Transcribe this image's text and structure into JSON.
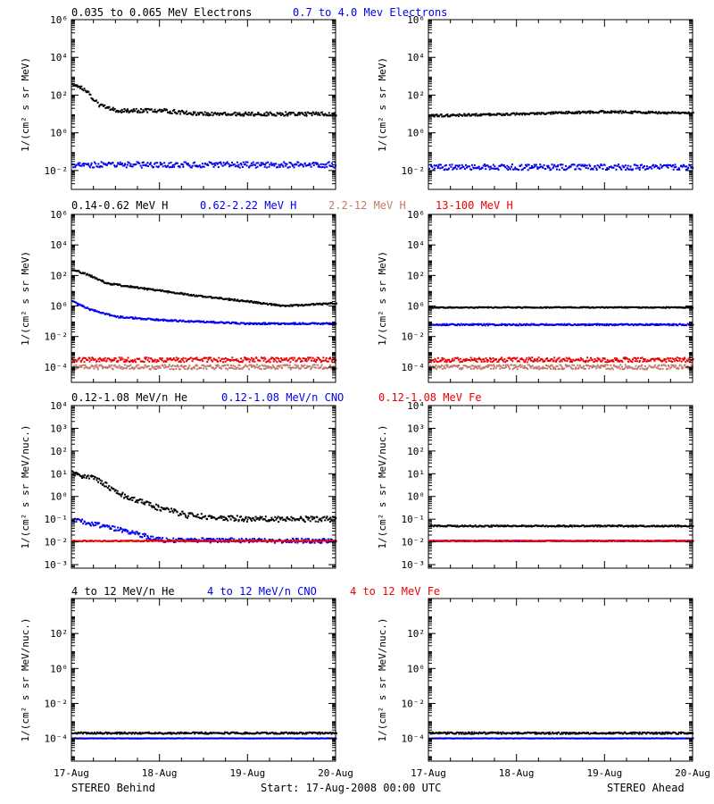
{
  "colors": {
    "black": "#000000",
    "blue": "#0000ee",
    "salmon": "#c07a6a",
    "red": "#ee0000"
  },
  "headers": {
    "row1": [
      {
        "text": "0.035 to 0.065 MeV Electrons",
        "color": "black"
      },
      {
        "text": "0.7 to 4.0 Mev Electrons",
        "color": "blue"
      }
    ],
    "row2": [
      {
        "text": "0.14-0.62 MeV H",
        "color": "black"
      },
      {
        "text": "0.62-2.22 MeV H",
        "color": "blue"
      },
      {
        "text": "2.2-12 MeV H",
        "color": "salmon"
      },
      {
        "text": "13-100 MeV H",
        "color": "red"
      }
    ],
    "row3": [
      {
        "text": "0.12-1.08 MeV/n He",
        "color": "black"
      },
      {
        "text": "0.12-1.08 MeV/n CNO",
        "color": "blue"
      },
      {
        "text": "0.12-1.08 MeV Fe",
        "color": "red"
      }
    ],
    "row4": [
      {
        "text": "4 to 12 MeV/n He",
        "color": "black"
      },
      {
        "text": "4 to 12 MeV/n CNO",
        "color": "blue"
      },
      {
        "text": "4 to 12 MeV Fe",
        "color": "red"
      }
    ]
  },
  "footer": {
    "left": "STEREO Behind",
    "center": "Start: 17-Aug-2008 00:00 UTC",
    "right": "STEREO Ahead"
  },
  "chart_data": [
    {
      "type": "scatter",
      "id": "electrons-behind",
      "ylabel": "1/(cm² s sr MeV)",
      "yscale": "log",
      "ylim": [
        0.001,
        1000000
      ],
      "yticks": [
        [
          6,
          "10⁶"
        ],
        [
          4,
          "10⁴"
        ],
        [
          2,
          "10²"
        ],
        [
          0,
          "10⁰"
        ],
        [
          -2,
          "10⁻²"
        ]
      ],
      "x_ticks": [
        "17-Aug",
        "18-Aug",
        "19-Aug",
        "20-Aug"
      ],
      "xlim_days": [
        0,
        3
      ],
      "series": [
        {
          "color": "black",
          "profile": [
            [
              0,
              400
            ],
            [
              0.15,
              200
            ],
            [
              0.3,
              30
            ],
            [
              0.5,
              15
            ],
            [
              1.0,
              15
            ],
            [
              1.5,
              10
            ],
            [
              2.0,
              10
            ],
            [
              3.0,
              10
            ]
          ],
          "scatter": 0.1
        },
        {
          "color": "blue",
          "profile": [
            [
              0,
              0.02
            ],
            [
              3.0,
              0.02
            ]
          ],
          "scatter": 0.15
        }
      ]
    },
    {
      "type": "scatter",
      "id": "electrons-ahead",
      "ylabel": "1/(cm² s sr MeV)",
      "yscale": "log",
      "ylim": [
        0.001,
        1000000
      ],
      "yticks": [
        [
          6,
          "10⁶"
        ],
        [
          4,
          "10⁴"
        ],
        [
          2,
          "10²"
        ],
        [
          0,
          "10⁰"
        ],
        [
          -2,
          "10⁻²"
        ]
      ],
      "x_ticks": [
        "17-Aug",
        "18-Aug",
        "19-Aug",
        "20-Aug"
      ],
      "xlim_days": [
        0,
        3
      ],
      "series": [
        {
          "color": "black",
          "profile": [
            [
              0,
              8
            ],
            [
              1.0,
              10
            ],
            [
              2.0,
              13
            ],
            [
              3.0,
              11
            ]
          ],
          "scatter": 0.06
        },
        {
          "color": "blue",
          "profile": [
            [
              0,
              0.015
            ],
            [
              3.0,
              0.015
            ]
          ],
          "scatter": 0.15
        }
      ]
    },
    {
      "type": "scatter",
      "id": "protons-behind",
      "ylabel": "1/(cm² s sr MeV)",
      "yscale": "log",
      "ylim": [
        1e-05,
        1000000
      ],
      "yticks": [
        [
          6,
          "10⁶"
        ],
        [
          4,
          "10⁴"
        ],
        [
          2,
          "10²"
        ],
        [
          0,
          "10⁰"
        ],
        [
          -2,
          "10⁻²"
        ],
        [
          -4,
          "10⁻⁴"
        ]
      ],
      "x_ticks": [
        "17-Aug",
        "18-Aug",
        "19-Aug",
        "20-Aug"
      ],
      "xlim_days": [
        0,
        3
      ],
      "series": [
        {
          "color": "black",
          "profile": [
            [
              0,
              250
            ],
            [
              0.2,
              100
            ],
            [
              0.4,
              30
            ],
            [
              1.0,
              10
            ],
            [
              1.5,
              4
            ],
            [
              2.0,
              2
            ],
            [
              2.4,
              1
            ],
            [
              3.0,
              1.5
            ]
          ],
          "scatter": 0.05
        },
        {
          "color": "blue",
          "profile": [
            [
              0,
              2
            ],
            [
              0.2,
              0.6
            ],
            [
              0.5,
              0.2
            ],
            [
              1.0,
              0.12
            ],
            [
              2.0,
              0.07
            ],
            [
              3.0,
              0.07
            ]
          ],
          "scatter": 0.05
        },
        {
          "color": "salmon",
          "profile": [
            [
              0,
              0.0001
            ],
            [
              3.0,
              0.0001
            ]
          ],
          "scatter": 0.15
        },
        {
          "color": "red",
          "profile": [
            [
              0,
              0.0003
            ],
            [
              3.0,
              0.0003
            ]
          ],
          "scatter": 0.15
        }
      ]
    },
    {
      "type": "scatter",
      "id": "protons-ahead",
      "ylabel": "1/(cm² s sr MeV)",
      "yscale": "log",
      "ylim": [
        1e-05,
        1000000
      ],
      "yticks": [
        [
          6,
          "10⁶"
        ],
        [
          4,
          "10⁴"
        ],
        [
          2,
          "10²"
        ],
        [
          0,
          "10⁰"
        ],
        [
          -2,
          "10⁻²"
        ],
        [
          -4,
          "10⁻⁴"
        ]
      ],
      "x_ticks": [
        "17-Aug",
        "18-Aug",
        "19-Aug",
        "20-Aug"
      ],
      "xlim_days": [
        0,
        3
      ],
      "series": [
        {
          "color": "black",
          "profile": [
            [
              0,
              0.8
            ],
            [
              3.0,
              0.8
            ]
          ],
          "scatter": 0.03
        },
        {
          "color": "blue",
          "profile": [
            [
              0,
              0.06
            ],
            [
              3.0,
              0.06
            ]
          ],
          "scatter": 0.05
        },
        {
          "color": "salmon",
          "profile": [
            [
              0,
              0.0001
            ],
            [
              3.0,
              0.0001
            ]
          ],
          "scatter": 0.15
        },
        {
          "color": "red",
          "profile": [
            [
              0,
              0.0003
            ],
            [
              3.0,
              0.0003
            ]
          ],
          "scatter": 0.15
        }
      ]
    },
    {
      "type": "scatter",
      "id": "heavy-low-behind",
      "ylabel": "1/(cm² s sr MeV/nuc.)",
      "yscale": "log",
      "ylim": [
        0.0007,
        10000
      ],
      "yticks": [
        [
          4,
          "10⁴"
        ],
        [
          3,
          "10³"
        ],
        [
          2,
          "10²"
        ],
        [
          1,
          "10¹"
        ],
        [
          0,
          "10⁰"
        ],
        [
          -1,
          "10⁻¹"
        ],
        [
          -2,
          "10⁻²"
        ],
        [
          -3,
          "10⁻³"
        ]
      ],
      "x_ticks": [
        "17-Aug",
        "18-Aug",
        "19-Aug",
        "20-Aug"
      ],
      "xlim_days": [
        0,
        3
      ],
      "series": [
        {
          "color": "black",
          "profile": [
            [
              0,
              12
            ],
            [
              0.3,
              5
            ],
            [
              0.6,
              1
            ],
            [
              1.0,
              0.3
            ],
            [
              1.3,
              0.15
            ],
            [
              2.0,
              0.1
            ],
            [
              3.0,
              0.1
            ]
          ],
          "scatter": 0.12
        },
        {
          "color": "blue",
          "profile": [
            [
              0,
              0.1
            ],
            [
              0.6,
              0.03
            ],
            [
              1.0,
              0.012
            ],
            [
              3.0,
              0.011
            ]
          ],
          "scatter": 0.1
        },
        {
          "color": "red",
          "profile": [
            [
              0,
              0.011
            ],
            [
              3.0,
              0.011
            ]
          ],
          "scatter": 0.02
        }
      ]
    },
    {
      "type": "scatter",
      "id": "heavy-low-ahead",
      "ylabel": "1/(cm² s sr MeV/nuc.)",
      "yscale": "log",
      "ylim": [
        0.0007,
        10000
      ],
      "yticks": [
        [
          4,
          "10⁴"
        ],
        [
          3,
          "10³"
        ],
        [
          2,
          "10²"
        ],
        [
          1,
          "10¹"
        ],
        [
          0,
          "10⁰"
        ],
        [
          -1,
          "10⁻¹"
        ],
        [
          -2,
          "10⁻²"
        ],
        [
          -3,
          "10⁻³"
        ]
      ],
      "x_ticks": [
        "17-Aug",
        "18-Aug",
        "19-Aug",
        "20-Aug"
      ],
      "xlim_days": [
        0,
        3
      ],
      "series": [
        {
          "color": "black",
          "profile": [
            [
              0,
              0.05
            ],
            [
              3.0,
              0.05
            ]
          ],
          "scatter": 0.03
        },
        {
          "color": "blue",
          "profile": [
            [
              0,
              0.011
            ],
            [
              3.0,
              0.011
            ]
          ],
          "scatter": 0.02
        },
        {
          "color": "red",
          "profile": [
            [
              0,
              0.011
            ],
            [
              3.0,
              0.011
            ]
          ],
          "scatter": 0.02
        }
      ]
    },
    {
      "type": "scatter",
      "id": "heavy-high-behind",
      "ylabel": "1/(cm² s sr MeV/nuc.)",
      "yscale": "log",
      "ylim": [
        5e-06,
        10000
      ],
      "yticks": [
        [
          2,
          "10²"
        ],
        [
          0,
          "10⁰"
        ],
        [
          -2,
          "10⁻²"
        ],
        [
          -4,
          "10⁻⁴"
        ]
      ],
      "x_ticks": [
        "17-Aug",
        "18-Aug",
        "19-Aug",
        "20-Aug"
      ],
      "xlim_days": [
        0,
        3
      ],
      "series": [
        {
          "color": "blue",
          "profile": [
            [
              0,
              0.0001
            ],
            [
              3.0,
              0.0001
            ]
          ],
          "scatter": 0.01
        },
        {
          "color": "black",
          "profile": [
            [
              0,
              0.0002
            ],
            [
              3.0,
              0.0002
            ]
          ],
          "scatter": 0.05
        }
      ]
    },
    {
      "type": "scatter",
      "id": "heavy-high-ahead",
      "ylabel": "1/(cm² s sr MeV/nuc.)",
      "yscale": "log",
      "ylim": [
        5e-06,
        10000
      ],
      "yticks": [
        [
          2,
          "10²"
        ],
        [
          0,
          "10⁰"
        ],
        [
          -2,
          "10⁻²"
        ],
        [
          -4,
          "10⁻⁴"
        ]
      ],
      "x_ticks": [
        "17-Aug",
        "18-Aug",
        "19-Aug",
        "20-Aug"
      ],
      "xlim_days": [
        0,
        3
      ],
      "series": [
        {
          "color": "blue",
          "profile": [
            [
              0,
              0.0001
            ],
            [
              3.0,
              0.0001
            ]
          ],
          "scatter": 0.01
        },
        {
          "color": "black",
          "profile": [
            [
              0,
              0.0002
            ],
            [
              3.0,
              0.0002
            ]
          ],
          "scatter": 0.05
        }
      ]
    }
  ]
}
